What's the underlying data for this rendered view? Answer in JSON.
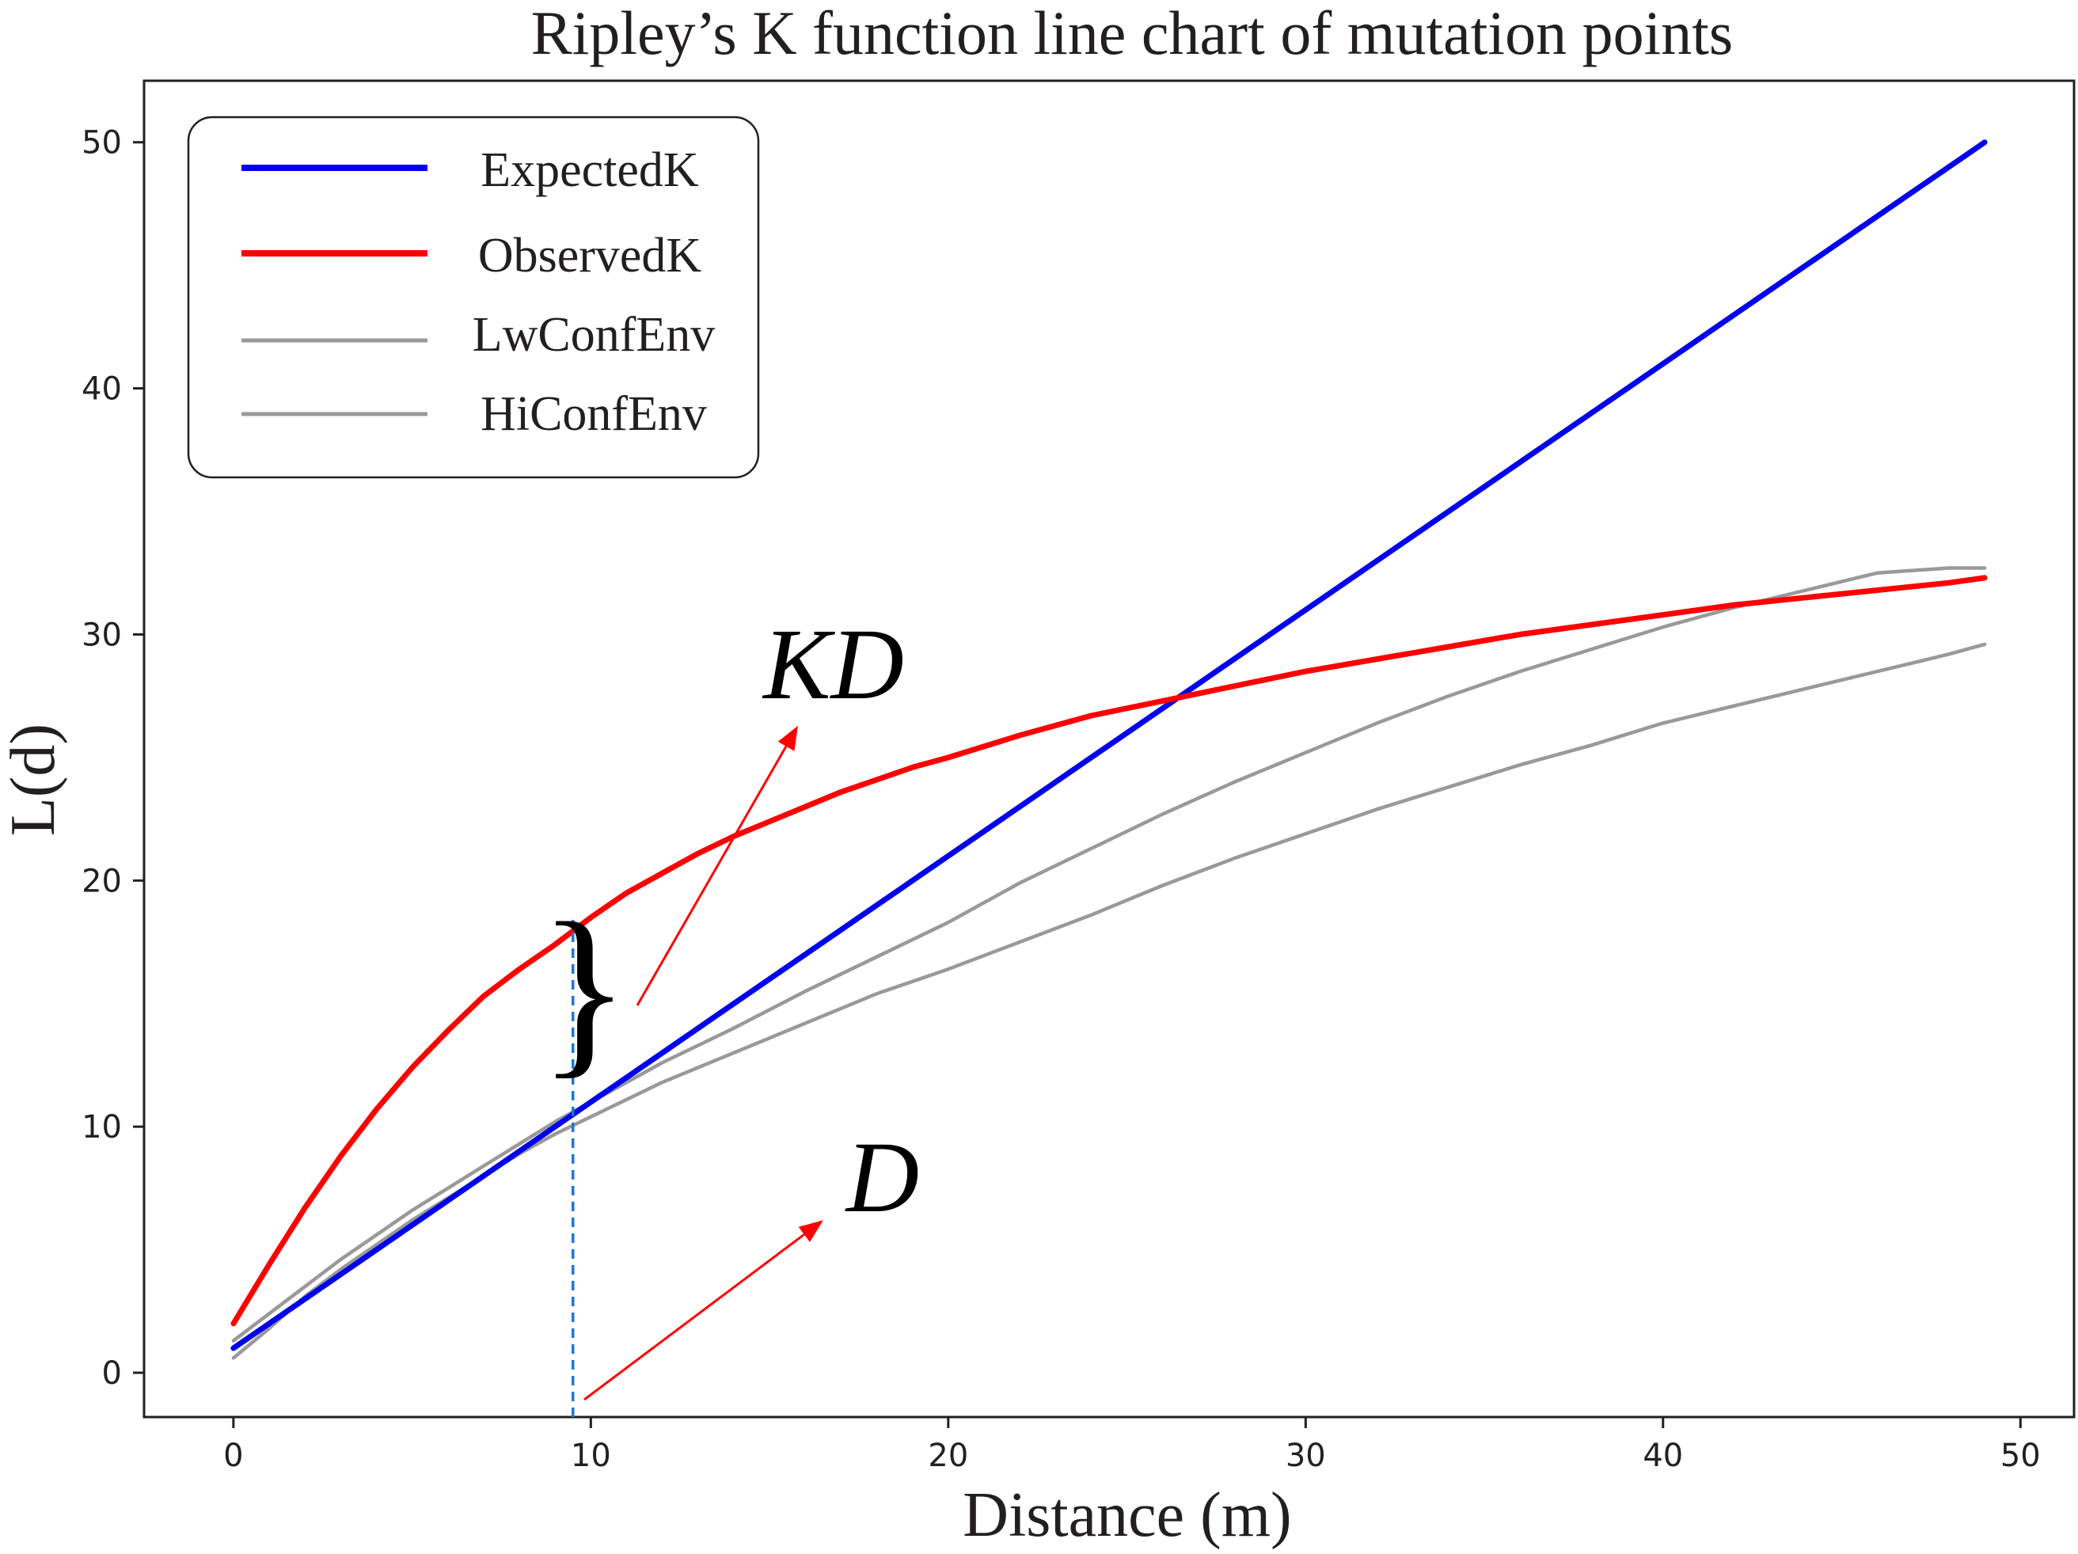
{
  "chart_data": {
    "type": "line",
    "title": "Ripley’s K function line chart of mutation points",
    "xlabel": "Distance (m)",
    "ylabel": "L(d)",
    "xlim": [
      -2.5,
      51.5
    ],
    "ylim": [
      -1.8,
      52.5
    ],
    "xticks": [
      0,
      10,
      20,
      30,
      40,
      50
    ],
    "yticks": [
      0,
      10,
      20,
      30,
      40,
      50
    ],
    "grid": false,
    "legend_position": "top-left",
    "series": [
      {
        "name": "ExpectedK",
        "color": "#0000ee",
        "x": [
          0,
          49
        ],
        "y": [
          1.0,
          50.0
        ]
      },
      {
        "name": "ObservedK",
        "color": "#ff0000",
        "x": [
          0,
          1,
          2,
          3,
          4,
          5,
          6,
          7,
          8,
          9,
          10,
          11,
          12,
          13,
          14,
          15,
          16,
          17,
          18,
          19,
          20,
          22,
          24,
          26,
          28,
          30,
          32,
          34,
          36,
          38,
          40,
          42,
          44,
          46,
          48,
          49
        ],
        "y": [
          2.0,
          4.4,
          6.7,
          8.8,
          10.7,
          12.4,
          13.9,
          15.3,
          16.4,
          17.4,
          18.5,
          19.5,
          20.3,
          21.1,
          21.8,
          22.4,
          23.0,
          23.6,
          24.1,
          24.6,
          25.0,
          25.9,
          26.7,
          27.3,
          27.9,
          28.5,
          29.0,
          29.5,
          30.0,
          30.4,
          30.8,
          31.2,
          31.5,
          31.8,
          32.1,
          32.3
        ]
      },
      {
        "name": "LwConfEnv",
        "color": "#999999",
        "x": [
          0,
          1,
          2,
          3,
          4,
          5,
          6,
          7,
          8,
          9,
          10,
          12,
          14,
          16,
          18,
          20,
          22,
          24,
          26,
          28,
          30,
          32,
          34,
          36,
          38,
          40,
          42,
          44,
          46,
          48,
          49
        ],
        "y": [
          0.6,
          1.8,
          3.1,
          4.2,
          5.2,
          6.2,
          7.1,
          8.0,
          8.9,
          9.7,
          10.4,
          11.8,
          13.0,
          14.2,
          15.4,
          16.4,
          17.5,
          18.6,
          19.8,
          20.9,
          21.9,
          22.9,
          23.8,
          24.7,
          25.5,
          26.4,
          27.1,
          27.8,
          28.5,
          29.2,
          29.6
        ]
      },
      {
        "name": "HiConfEnv",
        "color": "#999999",
        "x": [
          0,
          1,
          2,
          3,
          4,
          5,
          6,
          7,
          8,
          9,
          10,
          12,
          14,
          16,
          18,
          20,
          22,
          24,
          26,
          28,
          30,
          32,
          34,
          36,
          38,
          40,
          42,
          44,
          46,
          48,
          49
        ],
        "y": [
          1.3,
          2.4,
          3.5,
          4.6,
          5.6,
          6.6,
          7.5,
          8.4,
          9.3,
          10.2,
          11.0,
          12.6,
          14.0,
          15.5,
          16.9,
          18.3,
          19.9,
          21.3,
          22.7,
          24.0,
          25.2,
          26.4,
          27.5,
          28.5,
          29.4,
          30.3,
          31.1,
          31.8,
          32.5,
          32.7,
          32.7
        ]
      }
    ],
    "annotations": [
      {
        "text": "KD",
        "color": "#000000"
      },
      {
        "text": "D",
        "color": "#000000"
      },
      {
        "text": "}",
        "color": "#000000"
      }
    ],
    "marker_line": {
      "x": 9.5,
      "color": "#1f77d4"
    }
  }
}
